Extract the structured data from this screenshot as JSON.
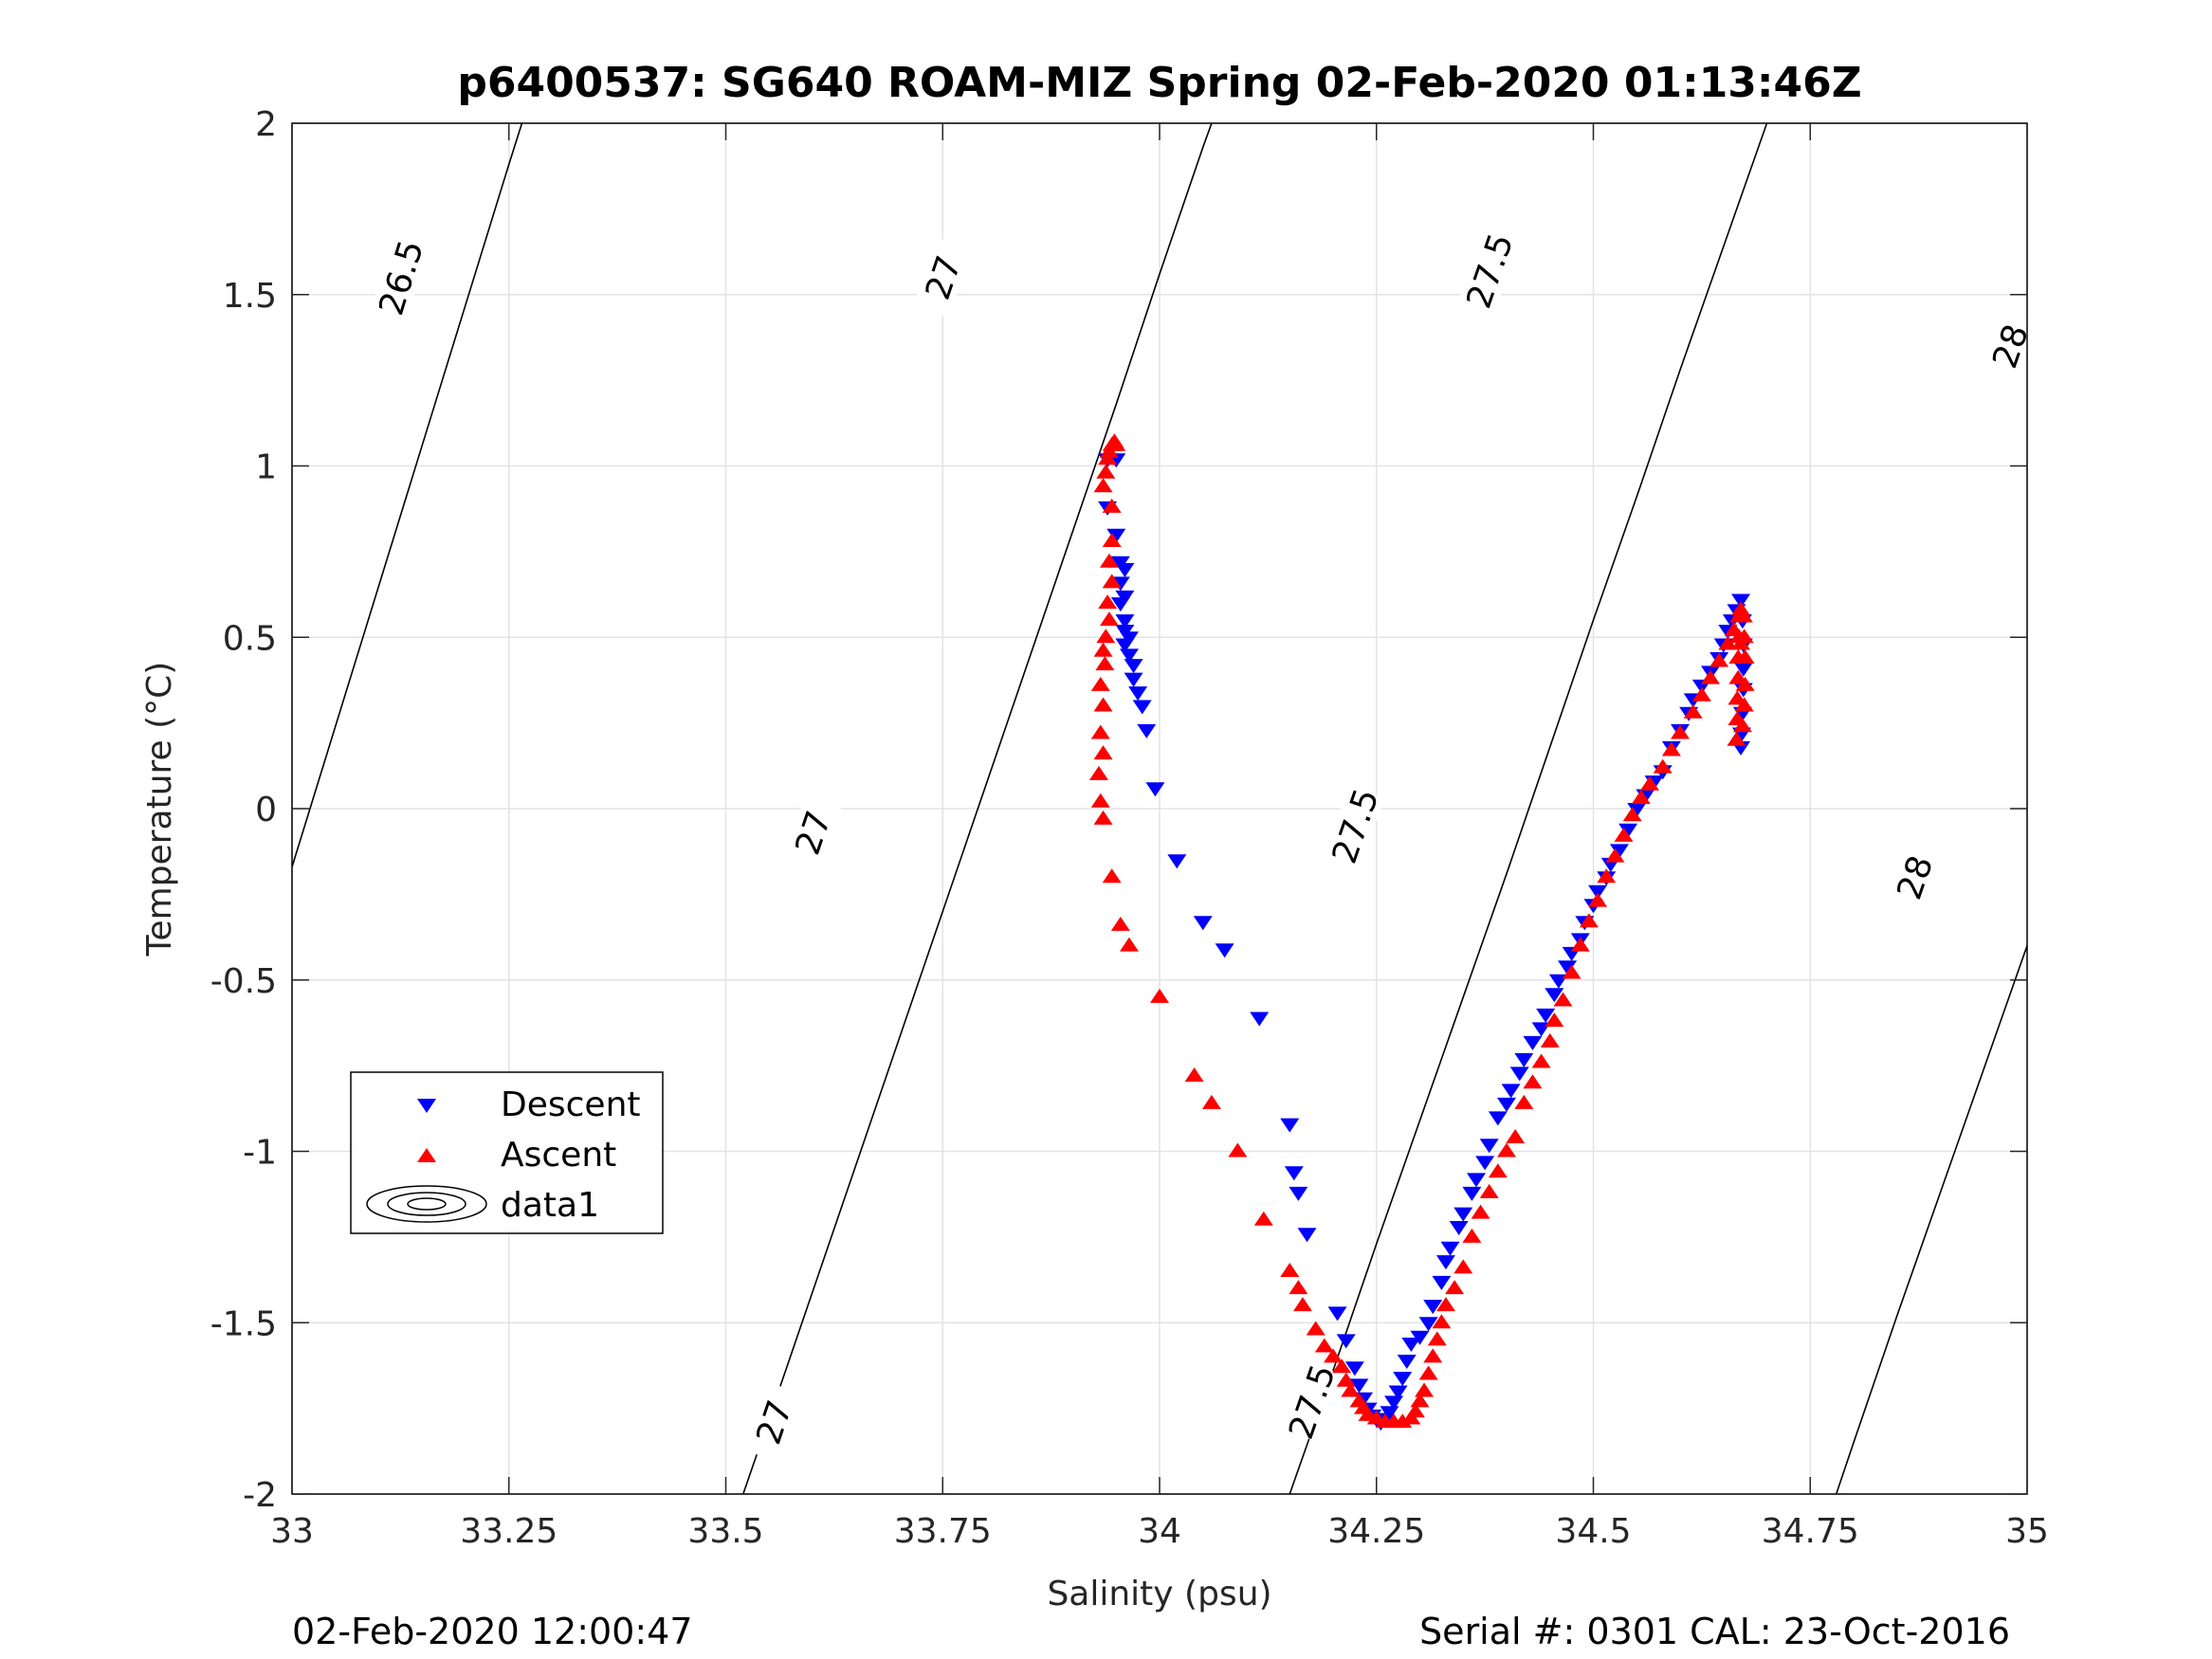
{
  "chart_data": {
    "type": "scatter",
    "title": "p6400537: SG640 ROAM-MIZ Spring 02-Feb-2020 01:13:46Z",
    "xlabel": "Salinity (psu)",
    "ylabel": "Temperature (°C)",
    "xlim": [
      33,
      35
    ],
    "ylim": [
      -2,
      2
    ],
    "xticks": [
      33,
      33.25,
      33.5,
      33.75,
      34,
      34.25,
      34.5,
      34.75,
      35
    ],
    "xtick_labels": [
      "33",
      "33.25",
      "33.5",
      "33.75",
      "34",
      "34.25",
      "34.5",
      "34.75",
      "35"
    ],
    "yticks": [
      -2,
      -1.5,
      -1,
      -0.5,
      0,
      0.5,
      1,
      1.5,
      2
    ],
    "ytick_labels": [
      "-2",
      "-1.5",
      "-1",
      "-0.5",
      "0",
      "0.5",
      "1",
      "1.5",
      "2"
    ],
    "grid": true,
    "legend_position": "lower-left",
    "footer_left": "02-Feb-2020 12:00:47",
    "footer_right": "Serial #: 0301  CAL: 23-Oct-2016",
    "series": [
      {
        "name": "Descent",
        "marker": "triangle-down",
        "color": "#0000ff",
        "points": [
          [
            33.94,
            1.02
          ],
          [
            33.95,
            1.02
          ],
          [
            33.94,
            0.88
          ],
          [
            33.95,
            0.8
          ],
          [
            33.955,
            0.72
          ],
          [
            33.96,
            0.7
          ],
          [
            33.955,
            0.66
          ],
          [
            33.96,
            0.62
          ],
          [
            33.955,
            0.6
          ],
          [
            33.96,
            0.55
          ],
          [
            33.96,
            0.52
          ],
          [
            33.965,
            0.5
          ],
          [
            33.96,
            0.48
          ],
          [
            33.965,
            0.45
          ],
          [
            33.97,
            0.42
          ],
          [
            33.97,
            0.38
          ],
          [
            33.975,
            0.34
          ],
          [
            33.98,
            0.3
          ],
          [
            33.985,
            0.23
          ],
          [
            33.995,
            0.06
          ],
          [
            34.02,
            -0.15
          ],
          [
            34.05,
            -0.33
          ],
          [
            34.075,
            -0.41
          ],
          [
            34.115,
            -0.61
          ],
          [
            34.15,
            -0.92
          ],
          [
            34.155,
            -1.06
          ],
          [
            34.16,
            -1.12
          ],
          [
            34.17,
            -1.24
          ],
          [
            34.205,
            -1.47
          ],
          [
            34.215,
            -1.55
          ],
          [
            34.225,
            -1.63
          ],
          [
            34.23,
            -1.68
          ],
          [
            34.235,
            -1.72
          ],
          [
            34.24,
            -1.75
          ],
          [
            34.245,
            -1.77
          ],
          [
            34.25,
            -1.78
          ],
          [
            34.255,
            -1.79
          ],
          [
            34.26,
            -1.78
          ],
          [
            34.265,
            -1.76
          ],
          [
            34.27,
            -1.73
          ],
          [
            34.275,
            -1.7
          ],
          [
            34.28,
            -1.66
          ],
          [
            34.285,
            -1.61
          ],
          [
            34.29,
            -1.56
          ],
          [
            34.3,
            -1.54
          ],
          [
            34.31,
            -1.5
          ],
          [
            34.315,
            -1.45
          ],
          [
            34.325,
            -1.38
          ],
          [
            34.33,
            -1.32
          ],
          [
            34.335,
            -1.28
          ],
          [
            34.345,
            -1.22
          ],
          [
            34.35,
            -1.18
          ],
          [
            34.36,
            -1.12
          ],
          [
            34.365,
            -1.08
          ],
          [
            34.375,
            -1.03
          ],
          [
            34.38,
            -0.98
          ],
          [
            34.39,
            -0.9
          ],
          [
            34.4,
            -0.86
          ],
          [
            34.405,
            -0.82
          ],
          [
            34.415,
            -0.77
          ],
          [
            34.42,
            -0.73
          ],
          [
            34.43,
            -0.68
          ],
          [
            34.44,
            -0.64
          ],
          [
            34.445,
            -0.6
          ],
          [
            34.455,
            -0.54
          ],
          [
            34.46,
            -0.5
          ],
          [
            34.47,
            -0.46
          ],
          [
            34.475,
            -0.42
          ],
          [
            34.485,
            -0.38
          ],
          [
            34.49,
            -0.33
          ],
          [
            34.5,
            -0.28
          ],
          [
            34.505,
            -0.24
          ],
          [
            34.515,
            -0.2
          ],
          [
            34.52,
            -0.16
          ],
          [
            34.53,
            -0.12
          ],
          [
            34.54,
            -0.06
          ],
          [
            34.55,
            0.0
          ],
          [
            34.56,
            0.04
          ],
          [
            34.57,
            0.08
          ],
          [
            34.58,
            0.11
          ],
          [
            34.59,
            0.18
          ],
          [
            34.6,
            0.23
          ],
          [
            34.61,
            0.28
          ],
          [
            34.615,
            0.32
          ],
          [
            34.625,
            0.36
          ],
          [
            34.635,
            0.4
          ],
          [
            34.645,
            0.44
          ],
          [
            34.65,
            0.48
          ],
          [
            34.655,
            0.52
          ],
          [
            34.66,
            0.55
          ],
          [
            34.665,
            0.58
          ],
          [
            34.67,
            0.61
          ],
          [
            34.672,
            0.55
          ],
          [
            34.673,
            0.48
          ],
          [
            34.673,
            0.41
          ],
          [
            34.673,
            0.35
          ],
          [
            34.672,
            0.28
          ],
          [
            34.671,
            0.22
          ],
          [
            34.67,
            0.18
          ]
        ]
      },
      {
        "name": "Ascent",
        "marker": "triangle-up",
        "color": "#ff0000",
        "points": [
          [
            33.935,
            0.94
          ],
          [
            33.938,
            0.98
          ],
          [
            33.94,
            1.02
          ],
          [
            33.942,
            1.04
          ],
          [
            33.945,
            1.06
          ],
          [
            33.948,
            1.07
          ],
          [
            33.95,
            1.06
          ],
          [
            33.945,
            0.88
          ],
          [
            33.945,
            0.78
          ],
          [
            33.942,
            0.72
          ],
          [
            33.945,
            0.66
          ],
          [
            33.94,
            0.6
          ],
          [
            33.942,
            0.55
          ],
          [
            33.938,
            0.5
          ],
          [
            33.935,
            0.46
          ],
          [
            33.937,
            0.42
          ],
          [
            33.932,
            0.36
          ],
          [
            33.935,
            0.3
          ],
          [
            33.932,
            0.22
          ],
          [
            33.935,
            0.16
          ],
          [
            33.93,
            0.1
          ],
          [
            33.932,
            0.02
          ],
          [
            33.935,
            -0.03
          ],
          [
            33.945,
            -0.2
          ],
          [
            33.955,
            -0.34
          ],
          [
            33.965,
            -0.4
          ],
          [
            34.0,
            -0.55
          ],
          [
            34.04,
            -0.78
          ],
          [
            34.06,
            -0.86
          ],
          [
            34.09,
            -1.0
          ],
          [
            34.12,
            -1.2
          ],
          [
            34.15,
            -1.35
          ],
          [
            34.16,
            -1.4
          ],
          [
            34.165,
            -1.45
          ],
          [
            34.18,
            -1.52
          ],
          [
            34.19,
            -1.57
          ],
          [
            34.2,
            -1.6
          ],
          [
            34.21,
            -1.63
          ],
          [
            34.215,
            -1.67
          ],
          [
            34.22,
            -1.7
          ],
          [
            34.23,
            -1.73
          ],
          [
            34.235,
            -1.75
          ],
          [
            34.24,
            -1.77
          ],
          [
            34.25,
            -1.78
          ],
          [
            34.26,
            -1.79
          ],
          [
            34.27,
            -1.79
          ],
          [
            34.28,
            -1.79
          ],
          [
            34.29,
            -1.78
          ],
          [
            34.295,
            -1.76
          ],
          [
            34.3,
            -1.73
          ],
          [
            34.305,
            -1.7
          ],
          [
            34.31,
            -1.65
          ],
          [
            34.315,
            -1.6
          ],
          [
            34.32,
            -1.55
          ],
          [
            34.325,
            -1.5
          ],
          [
            34.33,
            -1.45
          ],
          [
            34.34,
            -1.4
          ],
          [
            34.35,
            -1.34
          ],
          [
            34.36,
            -1.25
          ],
          [
            34.37,
            -1.18
          ],
          [
            34.38,
            -1.12
          ],
          [
            34.39,
            -1.06
          ],
          [
            34.4,
            -1.0
          ],
          [
            34.41,
            -0.96
          ],
          [
            34.42,
            -0.86
          ],
          [
            34.43,
            -0.8
          ],
          [
            34.44,
            -0.74
          ],
          [
            34.45,
            -0.68
          ],
          [
            34.455,
            -0.62
          ],
          [
            34.465,
            -0.56
          ],
          [
            34.475,
            -0.48
          ],
          [
            34.485,
            -0.4
          ],
          [
            34.495,
            -0.33
          ],
          [
            34.505,
            -0.27
          ],
          [
            34.515,
            -0.2
          ],
          [
            34.525,
            -0.14
          ],
          [
            34.535,
            -0.08
          ],
          [
            34.545,
            -0.02
          ],
          [
            34.555,
            0.03
          ],
          [
            34.565,
            0.07
          ],
          [
            34.58,
            0.12
          ],
          [
            34.59,
            0.17
          ],
          [
            34.6,
            0.22
          ],
          [
            34.615,
            0.28
          ],
          [
            34.625,
            0.33
          ],
          [
            34.635,
            0.38
          ],
          [
            34.645,
            0.43
          ],
          [
            34.655,
            0.48
          ],
          [
            34.662,
            0.52
          ],
          [
            34.668,
            0.56
          ],
          [
            34.67,
            0.58
          ],
          [
            34.668,
            0.5
          ],
          [
            34.667,
            0.44
          ],
          [
            34.667,
            0.38
          ],
          [
            34.666,
            0.32
          ],
          [
            34.666,
            0.26
          ],
          [
            34.665,
            0.2
          ],
          [
            34.672,
            0.24
          ],
          [
            34.674,
            0.3
          ],
          [
            34.675,
            0.36
          ],
          [
            34.675,
            0.44
          ],
          [
            34.674,
            0.5
          ],
          [
            34.673,
            0.56
          ],
          [
            34.67,
            0.48
          ]
        ]
      },
      {
        "name": "data1",
        "marker": "contour",
        "color": "#000000",
        "contours": [
          {
            "level": "26.5",
            "points": [
              [
                33.0,
                -0.17
              ],
              [
                33.05,
                0.24
              ],
              [
                33.1,
                0.65
              ],
              [
                33.15,
                1.06
              ],
              [
                33.2,
                1.47
              ],
              [
                33.25,
                1.88
              ],
              [
                33.265,
                2.0
              ]
            ],
            "labels": [
              [
                33.125,
                1.55
              ]
            ]
          },
          {
            "level": "27",
            "points": [
              [
                33.52,
                -2.0
              ],
              [
                33.55,
                -1.78
              ],
              [
                33.6,
                -1.41
              ],
              [
                33.65,
                -1.04
              ],
              [
                33.7,
                -0.67
              ],
              [
                33.75,
                -0.3
              ],
              [
                33.8,
                0.07
              ],
              [
                33.85,
                0.44
              ],
              [
                33.9,
                0.81
              ],
              [
                33.95,
                1.18
              ],
              [
                34.0,
                1.56
              ],
              [
                34.05,
                1.93
              ],
              [
                34.06,
                2.0
              ]
            ],
            "labels": [
              [
                33.555,
                -1.79
              ],
              [
                33.6,
                -0.07
              ],
              [
                33.75,
                1.55
              ]
            ]
          },
          {
            "level": "27.5",
            "points": [
              [
                34.15,
                -2.0
              ],
              [
                34.2,
                -1.64
              ],
              [
                34.25,
                -1.27
              ],
              [
                34.3,
                -0.91
              ],
              [
                34.35,
                -0.55
              ],
              [
                34.4,
                -0.19
              ],
              [
                34.45,
                0.18
              ],
              [
                34.5,
                0.55
              ],
              [
                34.55,
                0.91
              ],
              [
                34.6,
                1.28
              ],
              [
                34.65,
                1.64
              ],
              [
                34.7,
                2.0
              ]
            ],
            "labels": [
              [
                34.175,
                -1.73
              ],
              [
                34.225,
                -0.05
              ],
              [
                34.38,
                1.57
              ]
            ]
          },
          {
            "level": "28",
            "points": [
              [
                34.78,
                -2.0
              ],
              [
                34.8,
                -1.85
              ],
              [
                34.85,
                -1.48
              ],
              [
                34.9,
                -1.12
              ],
              [
                34.95,
                -0.76
              ],
              [
                35.0,
                -0.4
              ],
              [
                35.05,
                -0.04
              ],
              [
                35.1,
                0.32
              ],
              [
                35.15,
                0.68
              ],
              [
                35.2,
                1.04
              ],
              [
                35.25,
                1.4
              ],
              [
                35.3,
                1.76
              ],
              [
                35.33,
                2.0
              ]
            ],
            "labels": [
              [
                34.87,
                -0.2
              ],
              [
                34.98,
                1.35
              ]
            ]
          }
        ]
      }
    ]
  }
}
